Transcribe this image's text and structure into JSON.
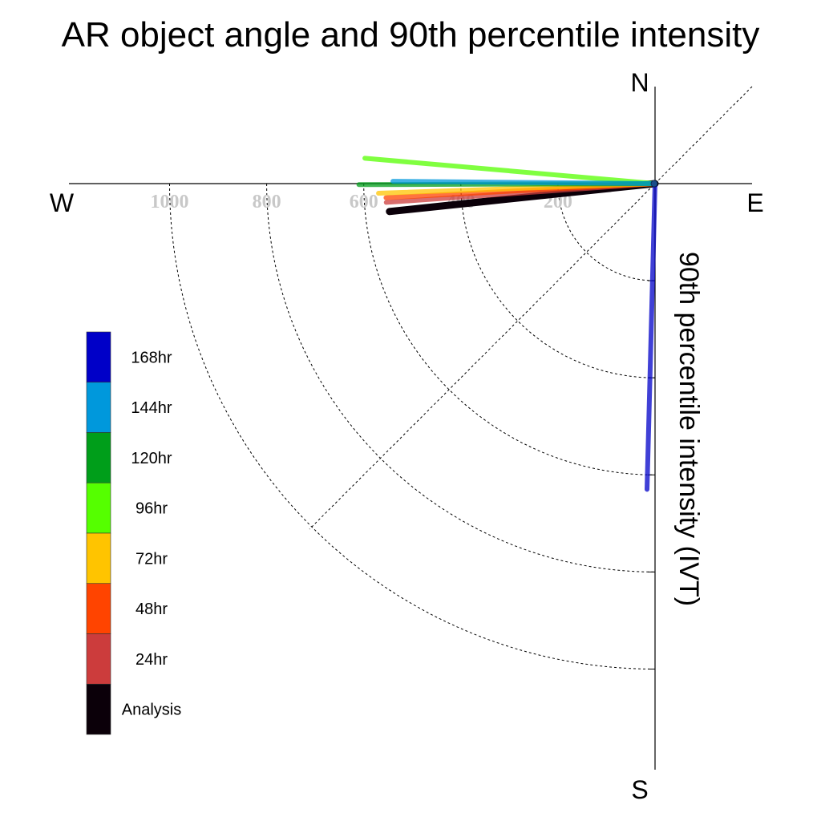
{
  "chart_data": {
    "type": "polar-vector",
    "title": "AR object angle and 90th percentile intensity",
    "radial_label": "90th percentile intensity (IVT)",
    "directions": {
      "north": "N",
      "south": "S",
      "east": "E",
      "west": "W"
    },
    "ring_values": [
      200,
      400,
      600,
      800,
      1000
    ],
    "ring_labels": [
      "200",
      "400",
      "600",
      "800",
      "1000"
    ],
    "radial_max": 1200,
    "diagonal_guide": "NE-SW",
    "legend_placement": "left",
    "series": [
      {
        "name": "168hr",
        "color": "#0000c8",
        "direction_deg": 181.5,
        "intensity": 630
      },
      {
        "name": "144hr",
        "color": "#0098dc",
        "direction_deg": 270.5,
        "intensity": 540
      },
      {
        "name": "120hr",
        "color": "#009e1a",
        "direction_deg": 269.8,
        "intensity": 610
      },
      {
        "name": "96hr",
        "color": "#55ff00",
        "direction_deg": 275.0,
        "intensity": 600
      },
      {
        "name": "72hr",
        "color": "#ffc400",
        "direction_deg": 268.0,
        "intensity": 570
      },
      {
        "name": "48hr",
        "color": "#ff4400",
        "direction_deg": 267.0,
        "intensity": 555
      },
      {
        "name": "24hr",
        "color": "#cc3c3c",
        "direction_deg": 266.0,
        "intensity": 555
      },
      {
        "name": "Analysis",
        "color": "#0b0009",
        "direction_deg": 264.0,
        "intensity": 550
      }
    ]
  }
}
